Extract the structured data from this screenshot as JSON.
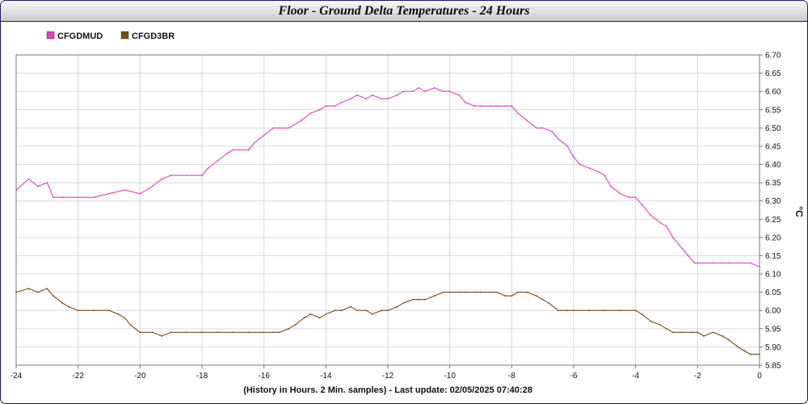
{
  "window": {
    "title": "Floor - Ground Delta Temperatures - 24 Hours"
  },
  "footer": "(History in Hours. 2 Min. samples) - Last update: 02/05/2025 07:40:28",
  "chart_data": {
    "type": "line",
    "title": "Floor - Ground Delta Temperatures - 24 Hours",
    "xlabel": "(History in Hours. 2 Min. samples) - Last update: 02/05/2025 07:40:28",
    "ylabel": "°C",
    "xlim": [
      -24,
      0
    ],
    "ylim": [
      5.85,
      6.7
    ],
    "xticks": [
      "-24",
      "-22",
      "-20",
      "-18",
      "-16",
      "-14",
      "-12",
      "-10",
      "-8",
      "-6",
      "-4",
      "-2",
      "0"
    ],
    "yticks": [
      "5.85",
      "5.90",
      "5.95",
      "6.00",
      "6.05",
      "6.10",
      "6.15",
      "6.20",
      "6.25",
      "6.30",
      "6.35",
      "6.40",
      "6.45",
      "6.50",
      "6.55",
      "6.60",
      "6.65",
      "6.70"
    ],
    "grid": true,
    "legend_position": "top-left",
    "series": [
      {
        "name": "CFGDMUD",
        "color": "#e040c0",
        "x": [
          -24,
          -23.6,
          -23.3,
          -23,
          -22.8,
          -22.5,
          -22,
          -21.5,
          -21,
          -20.5,
          -20,
          -19.6,
          -19.3,
          -19,
          -18.5,
          -18,
          -17.8,
          -17.5,
          -17.2,
          -17,
          -16.5,
          -16.3,
          -16,
          -15.7,
          -15.5,
          -15.2,
          -14.8,
          -14.5,
          -14.2,
          -14,
          -13.7,
          -13.5,
          -13.2,
          -13,
          -12.7,
          -12.5,
          -12.2,
          -12,
          -11.7,
          -11.5,
          -11.2,
          -11,
          -10.8,
          -10.5,
          -10.2,
          -10,
          -9.7,
          -9.5,
          -9.2,
          -9,
          -8.7,
          -8.5,
          -8.2,
          -8,
          -7.8,
          -7.5,
          -7.2,
          -7,
          -6.7,
          -6.5,
          -6.2,
          -6,
          -5.8,
          -5.5,
          -5.2,
          -5,
          -4.8,
          -4.5,
          -4.2,
          -4,
          -3.8,
          -3.5,
          -3.2,
          -3,
          -2.8,
          -2.5,
          -2.3,
          -2.1,
          -2,
          -1.8,
          -1.5,
          -1.2,
          -1,
          -0.7,
          -0.5,
          -0.3,
          0
        ],
        "values": [
          6.33,
          6.36,
          6.34,
          6.35,
          6.31,
          6.31,
          6.31,
          6.31,
          6.32,
          6.33,
          6.32,
          6.34,
          6.36,
          6.37,
          6.37,
          6.37,
          6.39,
          6.41,
          6.43,
          6.44,
          6.44,
          6.46,
          6.48,
          6.5,
          6.5,
          6.5,
          6.52,
          6.54,
          6.55,
          6.56,
          6.56,
          6.57,
          6.58,
          6.59,
          6.58,
          6.59,
          6.58,
          6.58,
          6.59,
          6.6,
          6.6,
          6.61,
          6.6,
          6.61,
          6.6,
          6.6,
          6.59,
          6.57,
          6.56,
          6.56,
          6.56,
          6.56,
          6.56,
          6.56,
          6.54,
          6.52,
          6.5,
          6.5,
          6.49,
          6.47,
          6.45,
          6.42,
          6.4,
          6.39,
          6.38,
          6.37,
          6.34,
          6.32,
          6.31,
          6.31,
          6.29,
          6.26,
          6.24,
          6.23,
          6.2,
          6.17,
          6.15,
          6.13,
          6.13,
          6.13,
          6.13,
          6.13,
          6.13,
          6.13,
          6.13,
          6.13,
          6.12
        ]
      },
      {
        "name": "CFGD3BR",
        "color": "#7a4a10",
        "x": [
          -24,
          -23.6,
          -23.3,
          -23,
          -22.8,
          -22.5,
          -22.3,
          -22,
          -21.5,
          -21,
          -20.7,
          -20.5,
          -20.3,
          -20,
          -19.6,
          -19.3,
          -19,
          -18.5,
          -18,
          -17.5,
          -17,
          -16.5,
          -16,
          -15.7,
          -15.5,
          -15.2,
          -15,
          -14.7,
          -14.5,
          -14.2,
          -14,
          -13.7,
          -13.5,
          -13.2,
          -13,
          -12.7,
          -12.5,
          -12.2,
          -12,
          -11.7,
          -11.5,
          -11.2,
          -11,
          -10.8,
          -10.5,
          -10.2,
          -10,
          -9.7,
          -9.5,
          -9.2,
          -9,
          -8.7,
          -8.5,
          -8.2,
          -8,
          -7.8,
          -7.5,
          -7.2,
          -7,
          -6.8,
          -6.5,
          -6.2,
          -6,
          -5.5,
          -5,
          -4.5,
          -4,
          -3.8,
          -3.5,
          -3.2,
          -3,
          -2.8,
          -2.5,
          -2.2,
          -2,
          -1.8,
          -1.5,
          -1.2,
          -1,
          -0.7,
          -0.5,
          -0.3,
          0
        ],
        "values": [
          6.05,
          6.06,
          6.05,
          6.06,
          6.04,
          6.02,
          6.01,
          6.0,
          6.0,
          6.0,
          5.99,
          5.98,
          5.96,
          5.94,
          5.94,
          5.93,
          5.94,
          5.94,
          5.94,
          5.94,
          5.94,
          5.94,
          5.94,
          5.94,
          5.94,
          5.95,
          5.96,
          5.98,
          5.99,
          5.98,
          5.99,
          6.0,
          6.0,
          6.01,
          6.0,
          6.0,
          5.99,
          6.0,
          6.0,
          6.01,
          6.02,
          6.03,
          6.03,
          6.03,
          6.04,
          6.05,
          6.05,
          6.05,
          6.05,
          6.05,
          6.05,
          6.05,
          6.05,
          6.04,
          6.04,
          6.05,
          6.05,
          6.04,
          6.03,
          6.02,
          6.0,
          6.0,
          6.0,
          6.0,
          6.0,
          6.0,
          6.0,
          5.99,
          5.97,
          5.96,
          5.95,
          5.94,
          5.94,
          5.94,
          5.94,
          5.93,
          5.94,
          5.93,
          5.92,
          5.9,
          5.89,
          5.88,
          5.88
        ]
      }
    ]
  }
}
